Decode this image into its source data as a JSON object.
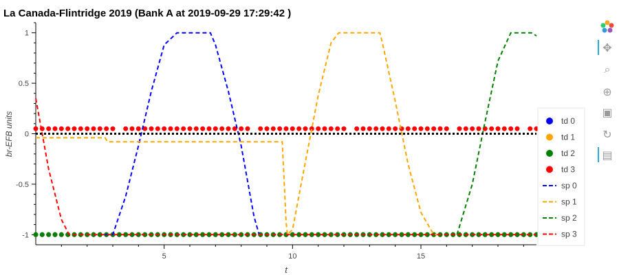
{
  "chart_data": {
    "type": "line",
    "title": "La Canada-Flintridge 2019 (Bank A at 2019-09-29 17:29:42 )",
    "xlabel": "t",
    "ylabel": "br-EFB units",
    "xlim": [
      0,
      19.5
    ],
    "ylim": [
      -1.1,
      1.1
    ],
    "xticks": [
      5,
      10,
      15
    ],
    "xtick_labels": [
      "5",
      "10",
      "15"
    ],
    "yticks": [
      1,
      0.5,
      0,
      -0.5,
      -1
    ],
    "ytick_labels": [
      "1",
      "0.5",
      "0",
      "-0.5",
      "-1"
    ],
    "grid": false,
    "legend_position": "right",
    "series": [
      {
        "name": "td 0",
        "kind": "scatter",
        "color": "#0000ff",
        "x_start": 0.0,
        "x_step": 0.25,
        "count": 80,
        "values_const": -1.0
      },
      {
        "name": "td 1",
        "kind": "scatter",
        "color": "#ffa500",
        "x_start": 0.0,
        "x_step": 0.25,
        "count": 80,
        "values_const": -1.0
      },
      {
        "name": "td 2",
        "kind": "scatter",
        "color": "#008000",
        "x_start": 0.0,
        "x_step": 0.25,
        "count": 80,
        "values_const": -1.0
      },
      {
        "name": "td 3",
        "kind": "scatter",
        "color": "#ff0000",
        "x_start": 0.0,
        "x_step": 0.25,
        "count": 80,
        "values_const": 0.05,
        "gaps_x": [
          3.25,
          8.5,
          12.25,
          16.25,
          19.0
        ]
      },
      {
        "name": "sp 0",
        "kind": "line",
        "color": "#0000ff",
        "x": [
          2.7,
          3.0,
          3.5,
          4.0,
          4.5,
          5.0,
          5.5,
          6.8,
          7.0,
          7.5,
          8.0,
          8.5,
          8.7
        ],
        "y": [
          -1.0,
          -1.0,
          -0.62,
          -0.12,
          0.42,
          0.88,
          1.0,
          1.0,
          0.88,
          0.42,
          -0.12,
          -0.82,
          -1.0
        ]
      },
      {
        "name": "sp 1",
        "kind": "line",
        "color": "#ffa500",
        "x": [
          0.0,
          2.7,
          2.8,
          9.6,
          9.75,
          9.8,
          10.0,
          10.5,
          11.0,
          11.5,
          11.8,
          13.4,
          13.5,
          14.0,
          14.5,
          15.0,
          15.5,
          15.8
        ],
        "y": [
          -0.04,
          -0.04,
          -0.08,
          -0.08,
          -0.88,
          -1.0,
          -0.95,
          -0.28,
          0.38,
          0.9,
          1.0,
          1.0,
          0.9,
          0.32,
          -0.3,
          -0.78,
          -1.0,
          -1.0
        ]
      },
      {
        "name": "sp 2",
        "kind": "line",
        "color": "#008000",
        "x": [
          16.4,
          16.5,
          17.0,
          17.5,
          18.0,
          18.5,
          19.3,
          19.5
        ],
        "y": [
          -1.0,
          -0.92,
          -0.5,
          0.12,
          0.72,
          1.0,
          1.0,
          0.97
        ]
      },
      {
        "name": "sp 3",
        "kind": "line",
        "color": "#ff0000",
        "x": [
          0.0,
          0.5,
          1.0,
          1.3,
          1.5,
          19.5
        ],
        "y": [
          0.35,
          -0.35,
          -0.85,
          -1.0,
          -1.0,
          -1.0
        ]
      },
      {
        "name": "baseline",
        "kind": "dotted",
        "color": "#000000",
        "x": [
          0,
          19.5
        ],
        "y": [
          0,
          0
        ]
      }
    ]
  },
  "legend": [
    {
      "label": "td 0",
      "kind": "dot",
      "color": "#0000ff"
    },
    {
      "label": "td 1",
      "kind": "dot",
      "color": "#ffa500"
    },
    {
      "label": "td 2",
      "kind": "dot",
      "color": "#008000"
    },
    {
      "label": "td 3",
      "kind": "dot",
      "color": "#ff0000"
    },
    {
      "label": "sp 0",
      "kind": "dash",
      "color": "#0000ff"
    },
    {
      "label": "sp 1",
      "kind": "dash",
      "color": "#ffa500"
    },
    {
      "label": "sp 2",
      "kind": "dash",
      "color": "#008000"
    },
    {
      "label": "sp 3",
      "kind": "dash",
      "color": "#ff0000"
    }
  ],
  "toolbar": {
    "tools": [
      {
        "name": "bokeh-logo-icon",
        "glyph": "",
        "active": false
      },
      {
        "name": "pan-tool-icon",
        "glyph": "✥",
        "active": true
      },
      {
        "name": "box-zoom-tool-icon",
        "glyph": "⌕",
        "active": false
      },
      {
        "name": "wheel-zoom-tool-icon",
        "glyph": "⊕",
        "active": false
      },
      {
        "name": "save-tool-icon",
        "glyph": "▣",
        "active": false
      },
      {
        "name": "reset-tool-icon",
        "glyph": "↻",
        "active": false
      },
      {
        "name": "hover-tool-icon",
        "glyph": "▤",
        "active": true
      }
    ]
  }
}
